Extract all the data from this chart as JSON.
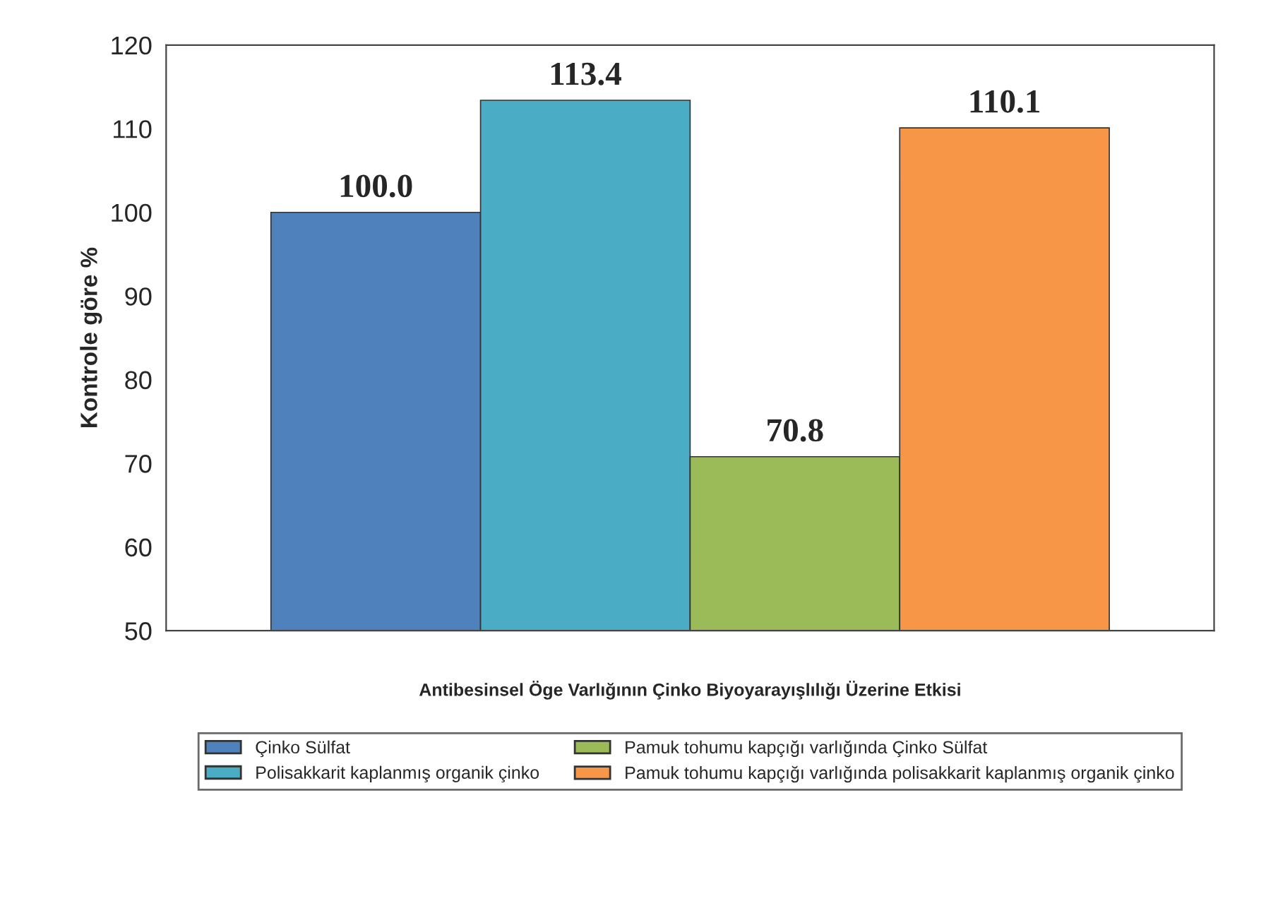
{
  "chart_data": {
    "type": "bar",
    "categories": [
      null
    ],
    "series": [
      {
        "name": "Çinko Sülfat",
        "color": "#4f81bd",
        "values": [
          100.0
        ],
        "value_labels": [
          "100.0"
        ]
      },
      {
        "name": "Polisakkarit kaplanmış organik çinko",
        "color": "#4bacc6",
        "values": [
          113.4
        ],
        "value_labels": [
          "113.4"
        ]
      },
      {
        "name": "Pamuk tohumu kapçığı varlığında Çinko Sülfat",
        "color": "#9bbb59",
        "values": [
          70.8
        ],
        "value_labels": [
          "70.8"
        ]
      },
      {
        "name": "Pamuk tohumu kapçığı varlığında polisakkarit kaplanmış organik çinko",
        "color": "#f79646",
        "values": [
          110.1
        ],
        "value_labels": [
          "110.1"
        ]
      }
    ],
    "xlabel": "Antibesinsel Öge Varlığının Çinko Biyoyarayışlılığı Üzerine Etkisi",
    "ylabel": "Kontrole göre %",
    "ylim": [
      50,
      120
    ],
    "yticks": [
      50,
      60,
      70,
      80,
      90,
      100,
      110,
      120
    ],
    "legend": "bottom",
    "grid": false
  }
}
